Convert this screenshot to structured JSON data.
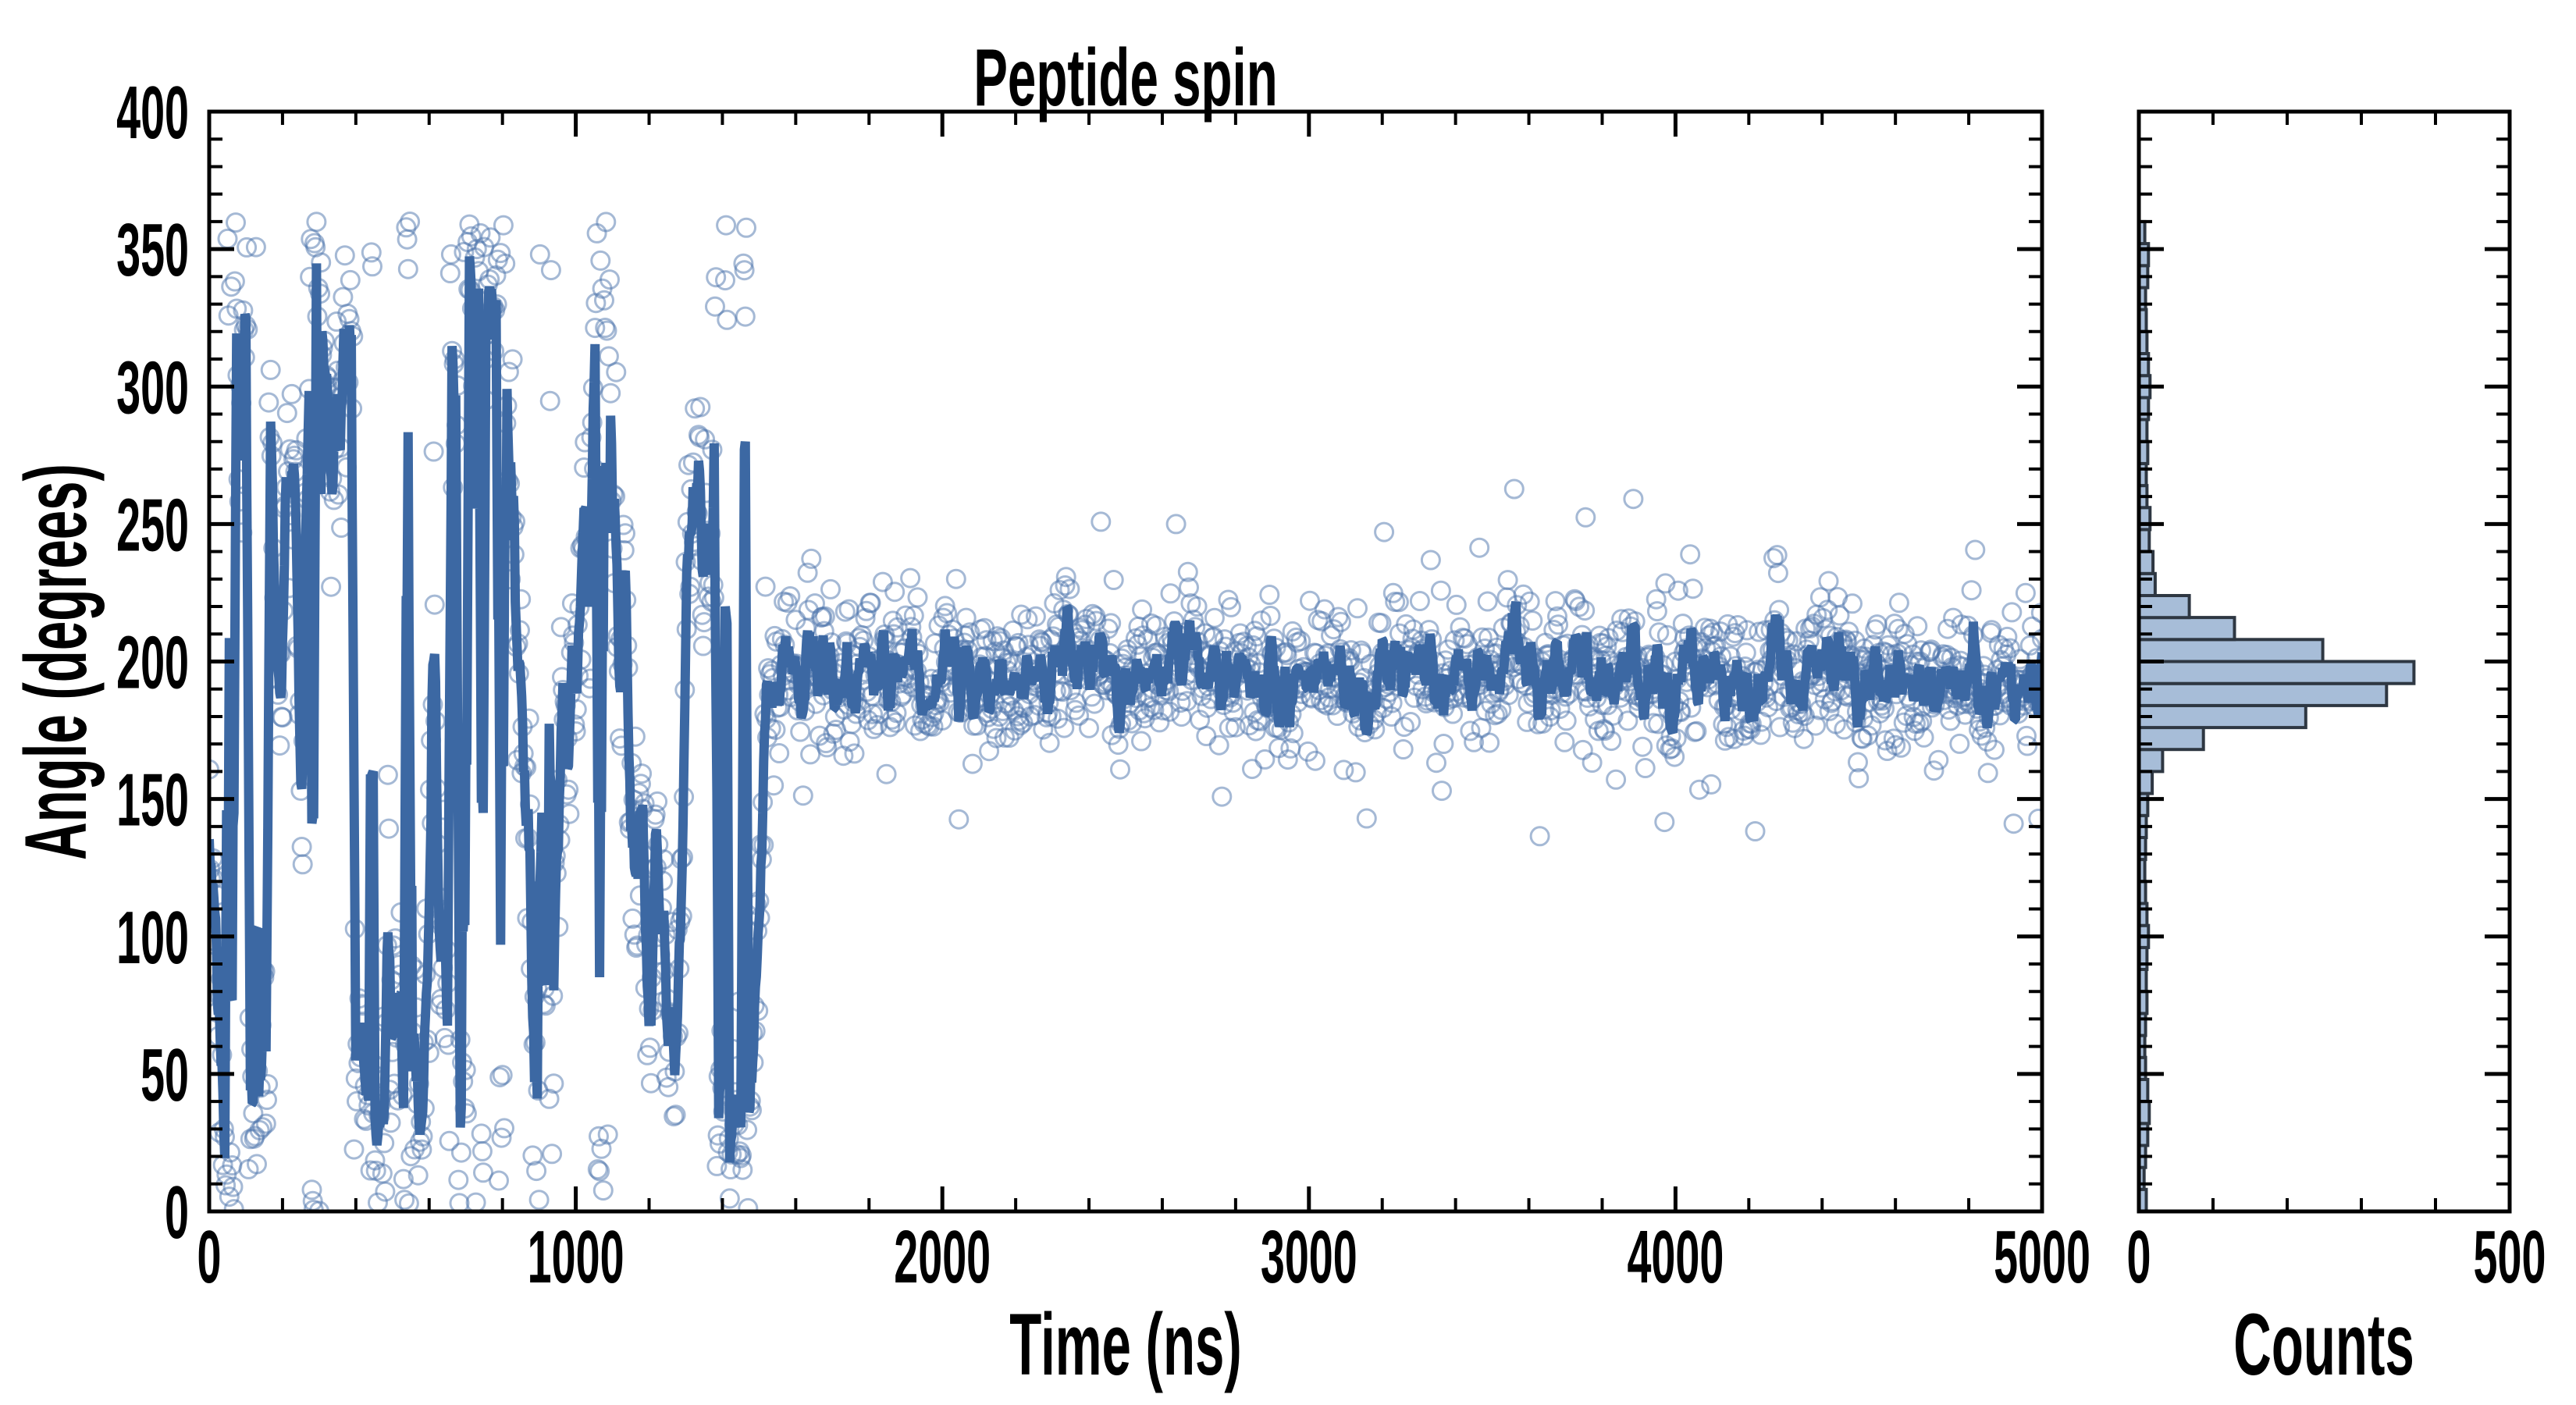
{
  "figure": {
    "title": "Peptide spin",
    "background": "#ffffff",
    "axis_color": "#000000"
  },
  "chart_data": [
    {
      "type": "scatter",
      "panel": "main",
      "title": "Peptide spin",
      "xlabel": "Time (ns)",
      "ylabel": "Angle (degrees)",
      "xlim": [
        0,
        5000
      ],
      "ylim": [
        0,
        400
      ],
      "x_major_ticks": [
        0,
        1000,
        2000,
        3000,
        4000,
        5000
      ],
      "x_tick_labels": [
        "0",
        "1000",
        "2000",
        "3000",
        "4000",
        "5000"
      ],
      "x_minor_tick_step": 200,
      "y_major_ticks": [
        0,
        50,
        100,
        150,
        200,
        250,
        300,
        350,
        400
      ],
      "y_tick_labels": [
        "0",
        "50",
        "100",
        "150",
        "200",
        "250",
        "300",
        "350",
        "400"
      ],
      "y_minor_tick_step": 10,
      "grid": false,
      "tick_direction": "in",
      "legend": "none",
      "series": [
        {
          "name": "instantaneous-angle-samples",
          "plot": "scatter",
          "marker": "open-circle",
          "color": "#4C74AC",
          "opacity": 0.5,
          "marker_radius": 11.5,
          "marker_stroke_width": 3,
          "description": "Angle wraps chaotically over 0-360 deg for t < ~1500 ns, then locks near 195 deg until 5000 ns",
          "generator": {
            "seed": 1337,
            "n": 2000,
            "dt": 2.5,
            "theta0": 150,
            "phase1_end": 1500,
            "walk_sigma": 26,
            "phase1_noise": 17,
            "stable_mean": 195,
            "revert": 0.15,
            "stable_walk": 3,
            "noise": 13,
            "outlier_prob": 0.02,
            "outlier_min": 32,
            "outlier_max": 62
          }
        },
        {
          "name": "running-average-line",
          "plot": "line",
          "color": "#3C68A3",
          "linewidth": 12,
          "window": 5,
          "description": "Thick running-mean line; near-vertical full-height strokes before 1500 ns where the angle wraps through 0/360, then small wiggles around 195 deg"
        }
      ]
    },
    {
      "type": "histogram",
      "panel": "side",
      "orientation": "horizontal",
      "xlabel": "Counts",
      "xlim": [
        0,
        500
      ],
      "x_major_ticks": [
        0,
        500
      ],
      "x_tick_labels": [
        "0",
        "500"
      ],
      "x_minor_tick_step": 100,
      "ylim": [
        0,
        400
      ],
      "y_major_tick_step": 50,
      "y_minor_tick_step": 10,
      "bar_fill": "#A7BDD8",
      "bar_edge": "#2E3742",
      "bar_edge_width": 4,
      "bin_start": 0,
      "bin_width": 8,
      "counts": [
        10,
        7,
        9,
        12,
        14,
        12,
        9,
        8,
        9,
        11,
        10,
        11,
        13,
        11,
        9,
        8,
        9,
        10,
        12,
        18,
        32,
        87,
        225,
        334,
        371,
        248,
        129,
        68,
        22,
        19,
        14,
        15,
        11,
        10,
        12,
        11,
        13,
        15,
        13,
        11,
        10,
        9,
        12,
        13,
        8
      ],
      "peak": {
        "angle_range": [
          192,
          200
        ],
        "count": 371
      }
    }
  ]
}
